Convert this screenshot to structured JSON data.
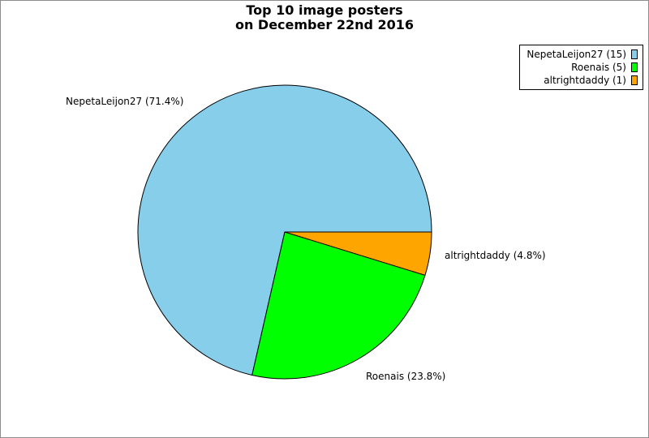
{
  "chart_data": {
    "type": "pie",
    "title": [
      "Top 10 image posters",
      "on December 22nd 2016"
    ],
    "slices": [
      {
        "label": "NepetaLeijon27",
        "value": 15,
        "percent": "71.4%",
        "color": "#87ceeb"
      },
      {
        "label": "Roenais",
        "value": 5,
        "percent": "23.8%",
        "color": "#00ff00"
      },
      {
        "label": "altrightdaddy",
        "value": 1,
        "percent": "4.8%",
        "color": "#ffa500"
      }
    ],
    "slice_labels": [
      "NepetaLeijon27 (71.4%)",
      "Roenais (23.8%)",
      "altrightdaddy (4.8%)"
    ],
    "legend": {
      "position": "top-right",
      "entries": [
        "NepetaLeijon27 (15)",
        "Roenais (5)",
        "altrightdaddy (1)"
      ]
    }
  }
}
